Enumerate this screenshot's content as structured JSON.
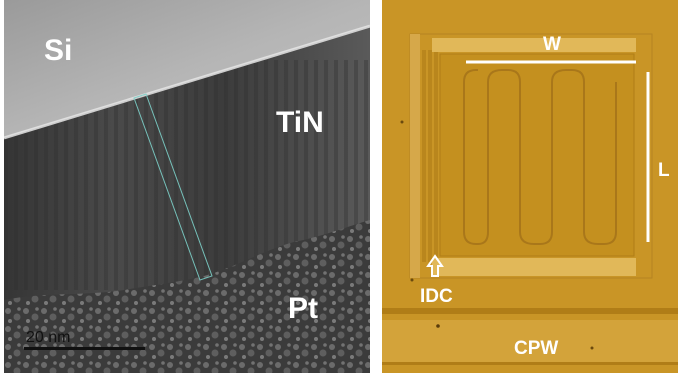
{
  "tem": {
    "label_si": "Si",
    "label_tin": "TiN",
    "label_pt": "Pt",
    "scale_bar_text": "20 nm"
  },
  "microscope": {
    "label_w": "W",
    "label_l": "L",
    "label_idc": "IDC",
    "label_cpw": "CPW",
    "colors": {
      "substrate": "#c99526",
      "metal_light": "#e1b859",
      "metal_dark": "#b07d17",
      "annotation": "#ffffff"
    }
  },
  "colors": {
    "si": "#b9b9b9",
    "tin": "#4b4b4b",
    "pt": "#3a3a3a",
    "interface": "#e6e6e6",
    "highlight_box": "#7ccfc8"
  }
}
